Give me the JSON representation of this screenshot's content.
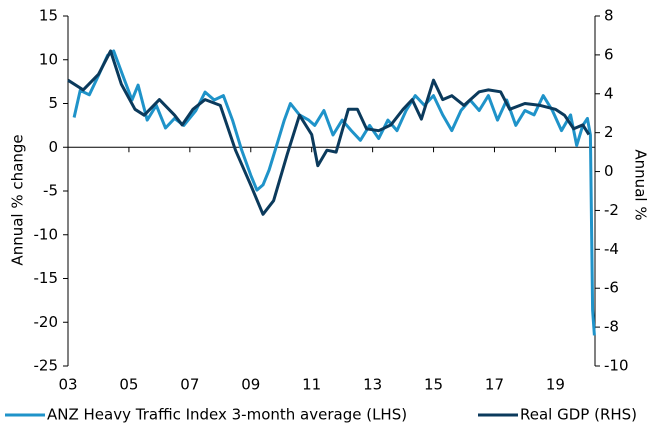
{
  "chart_data": {
    "type": "line",
    "ylabel": "Annual % change",
    "y2label": "Annual %",
    "xlim": [
      2003,
      2020.3
    ],
    "xticks": [
      {
        "value": 2003,
        "label": "03"
      },
      {
        "value": 2005,
        "label": "05"
      },
      {
        "value": 2007,
        "label": "07"
      },
      {
        "value": 2009,
        "label": "09"
      },
      {
        "value": 2011,
        "label": "11"
      },
      {
        "value": 2013,
        "label": "13"
      },
      {
        "value": 2015,
        "label": "15"
      },
      {
        "value": 2017,
        "label": "17"
      },
      {
        "value": 2019,
        "label": "19"
      }
    ],
    "ylim": [
      -25,
      15
    ],
    "yticks": [
      -25,
      -20,
      -15,
      -10,
      -5,
      0,
      5,
      10,
      15
    ],
    "y2lim": [
      -10,
      8
    ],
    "y2ticks": [
      -10,
      -8,
      -6,
      -4,
      -2,
      0,
      2,
      4,
      6,
      8
    ],
    "legend": "bottom",
    "series": [
      {
        "name": "ANZ Heavy Traffic Index 3-month average (LHS)",
        "color": "#1f93c9",
        "x": [
          2003.2,
          2003.4,
          2003.7,
          2004,
          2004.3,
          2004.5,
          2004.8,
          2005.1,
          2005.3,
          2005.6,
          2005.9,
          2006.2,
          2006.5,
          2006.8,
          2007.2,
          2007.5,
          2007.8,
          2008.1,
          2008.4,
          2008.7,
          2009,
          2009.2,
          2009.4,
          2009.6,
          2009.9,
          2010.1,
          2010.3,
          2010.6,
          2010.9,
          2011.1,
          2011.4,
          2011.7,
          2012,
          2012.3,
          2012.6,
          2012.9,
          2013.2,
          2013.5,
          2013.8,
          2014.1,
          2014.4,
          2014.7,
          2015,
          2015.3,
          2015.6,
          2015.9,
          2016.2,
          2016.5,
          2016.8,
          2017.1,
          2017.4,
          2017.7,
          2018,
          2018.3,
          2018.6,
          2018.9,
          2019.2,
          2019.5,
          2019.7,
          2019.9,
          2020.05,
          2020.15,
          2020.22,
          2020.28
        ],
        "values": [
          3.4,
          6.5,
          6,
          8.2,
          10.5,
          11,
          8.2,
          5.4,
          7.1,
          3.1,
          4.8,
          2.2,
          3.3,
          2.5,
          4.2,
          6.3,
          5.4,
          5.9,
          3.1,
          -0.3,
          -3.2,
          -4.9,
          -4.3,
          -2.6,
          0.8,
          3.1,
          5,
          3.7,
          3.1,
          2.5,
          4.2,
          1.4,
          3.1,
          1.9,
          0.8,
          2.5,
          1,
          3.1,
          1.9,
          4.2,
          5.9,
          4.8,
          5.9,
          3.7,
          1.9,
          4.2,
          5.4,
          4.2,
          5.9,
          3.1,
          5.4,
          2.5,
          4.2,
          3.7,
          5.9,
          4.2,
          1.9,
          3.7,
          0.2,
          2.5,
          3.3,
          1.4,
          -18.6,
          -21.5
        ]
      },
      {
        "name": "Real GDP (RHS)",
        "color": "#0b3a5c",
        "axis": "y2",
        "x": [
          2003,
          2003.5,
          2004,
          2004.4,
          2004.75,
          2005.2,
          2005.5,
          2006,
          2006.5,
          2006.75,
          2007.1,
          2007.5,
          2008,
          2008.5,
          2009,
          2009.4,
          2009.75,
          2010.2,
          2010.6,
          2011,
          2011.2,
          2011.5,
          2011.8,
          2012.2,
          2012.5,
          2012.8,
          2013.2,
          2013.6,
          2014,
          2014.3,
          2014.6,
          2015,
          2015.3,
          2015.6,
          2016,
          2016.5,
          2016.8,
          2017.2,
          2017.5,
          2018,
          2018.5,
          2019,
          2019.3,
          2019.6,
          2019.9,
          2020.1
        ],
        "values": [
          4.7,
          4.2,
          5,
          6.2,
          4.5,
          3.2,
          2.9,
          3.7,
          2.9,
          2.4,
          3.2,
          3.7,
          3.4,
          1.1,
          -0.7,
          -2.2,
          -1.5,
          0.9,
          2.9,
          1.9,
          0.3,
          1.1,
          1,
          3.2,
          3.2,
          2.2,
          2.1,
          2.4,
          3.2,
          3.7,
          2.7,
          4.7,
          3.7,
          3.9,
          3.4,
          4.1,
          4.2,
          4.1,
          3.2,
          3.5,
          3.4,
          3.2,
          2.9,
          2.2,
          2.4,
          1.9
        ]
      }
    ]
  }
}
